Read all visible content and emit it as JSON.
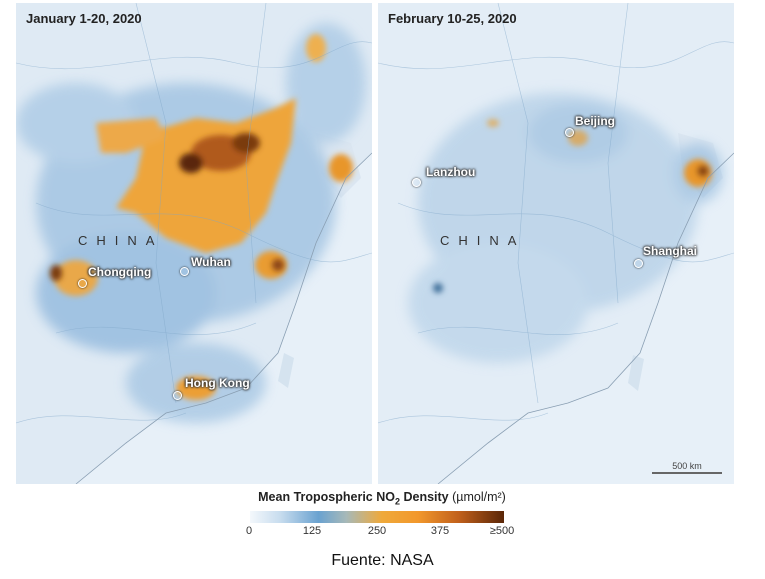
{
  "panels": [
    {
      "date": "January 1-20, 2020",
      "country": "CHINA",
      "cities": [
        "Chongqing",
        "Wuhan",
        "Hong Kong"
      ]
    },
    {
      "date": "February 10-25, 2020",
      "country": "CHINA",
      "cities": [
        "Beijing",
        "Lanzhou",
        "Shanghai"
      ]
    }
  ],
  "scale_label": "500 km",
  "legend": {
    "title_main": "Mean Tropospheric NO",
    "title_sub": "2",
    "title_tail": " Density",
    "unit": "(µmol/m²)",
    "ticks": [
      "0",
      "125",
      "250",
      "375",
      "≥500"
    ]
  },
  "colors": {
    "ocean": "#e7f0f8",
    "low": "#6aa2d0",
    "mid": "#efa93a",
    "high": "#5a2607"
  },
  "source": "Fuente: NASA"
}
